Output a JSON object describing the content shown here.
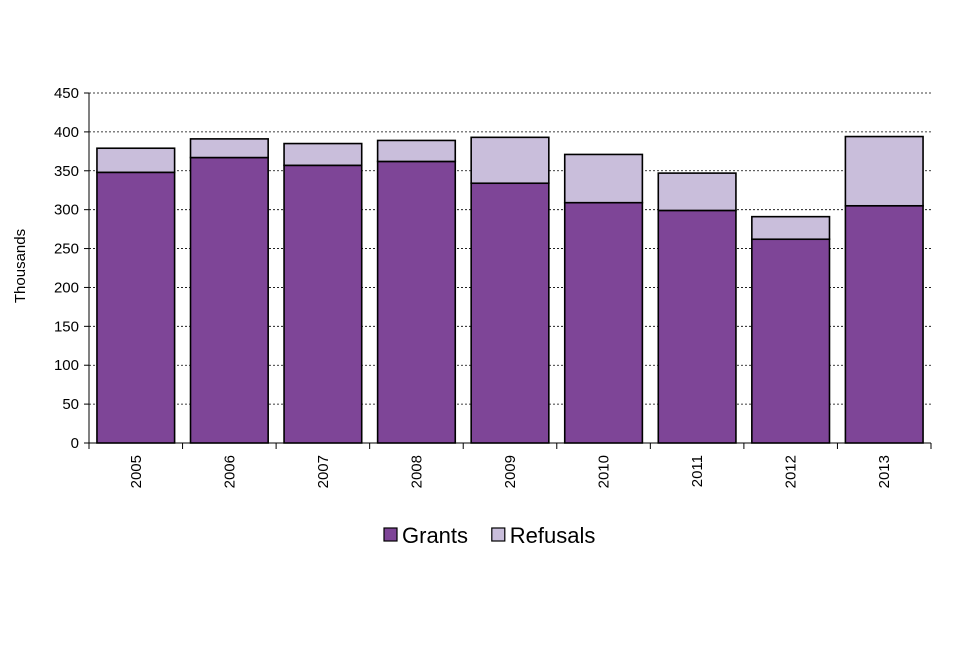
{
  "chart_data": {
    "type": "bar",
    "stacked": true,
    "title": "",
    "xlabel": "",
    "ylabel": "Thousands",
    "ylim": [
      0,
      450
    ],
    "ytick_step": 50,
    "grid": true,
    "legend_position": "bottom",
    "categories": [
      "2005",
      "2006",
      "2007",
      "2008",
      "2009",
      "2010",
      "2011",
      "2012",
      "2013"
    ],
    "series": [
      {
        "name": "Grants",
        "color": "#7E4597",
        "values": [
          348,
          367,
          357,
          362,
          334,
          309,
          299,
          262,
          305
        ]
      },
      {
        "name": "Refusals",
        "color": "#C9BEDB",
        "values": [
          31,
          24,
          28,
          27,
          59,
          62,
          48,
          29,
          89
        ]
      }
    ]
  }
}
